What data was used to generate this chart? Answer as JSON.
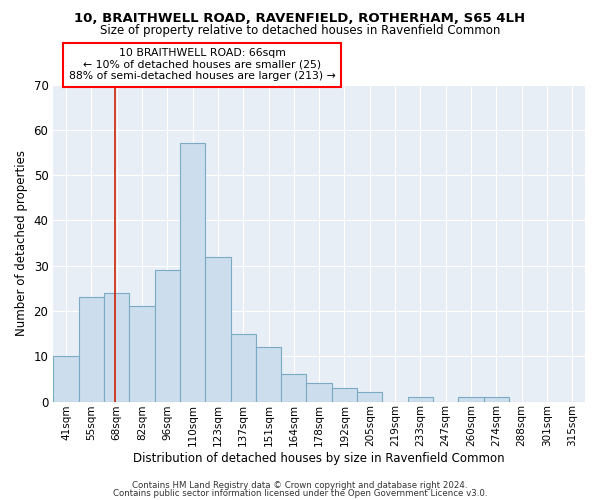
{
  "title": "10, BRAITHWELL ROAD, RAVENFIELD, ROTHERHAM, S65 4LH",
  "subtitle": "Size of property relative to detached houses in Ravenfield Common",
  "xlabel": "Distribution of detached houses by size in Ravenfield Common",
  "ylabel": "Number of detached properties",
  "bar_facecolor": "#ccdded",
  "bar_edgecolor": "#7aaac4",
  "categories": [
    "41sqm",
    "55sqm",
    "68sqm",
    "82sqm",
    "96sqm",
    "110sqm",
    "123sqm",
    "137sqm",
    "151sqm",
    "164sqm",
    "178sqm",
    "192sqm",
    "205sqm",
    "219sqm",
    "233sqm",
    "247sqm",
    "260sqm",
    "274sqm",
    "288sqm",
    "301sqm",
    "315sqm"
  ],
  "heights": [
    10,
    23,
    24,
    21,
    29,
    57,
    32,
    15,
    12,
    6,
    4,
    3,
    2,
    0,
    1,
    0,
    1,
    1,
    0,
    0,
    0
  ],
  "red_line_idx": 2,
  "annotation_line1": "10 BRAITHWELL ROAD: 66sqm",
  "annotation_line2": "← 10% of detached houses are smaller (25)",
  "annotation_line3": "88% of semi-detached houses are larger (213) →",
  "ylim": [
    0,
    70
  ],
  "yticks": [
    0,
    10,
    20,
    30,
    40,
    50,
    60,
    70
  ],
  "footer1": "Contains HM Land Registry data © Crown copyright and database right 2024.",
  "footer2": "Contains public sector information licensed under the Open Government Licence v3.0.",
  "bg_color": "#e8eef6",
  "grid_color": "white"
}
